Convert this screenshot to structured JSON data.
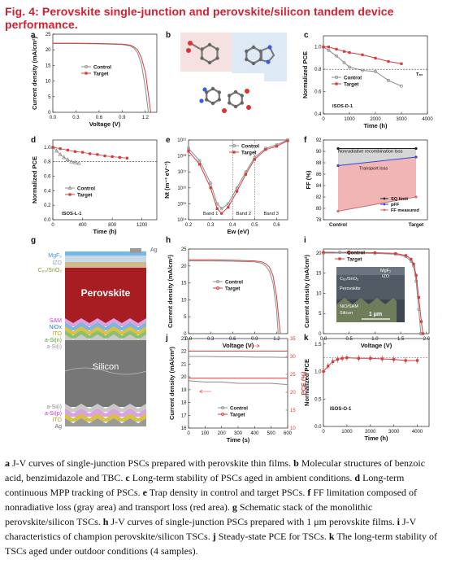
{
  "figure_title": "Fig. 4: Perovskite single-junction and perovskite/silicon tandem device performance.",
  "colors": {
    "control": "#8c8c8c",
    "target": "#d43c3c",
    "title": "#d2202f"
  },
  "panels": {
    "a": {
      "letter": "a",
      "xlabel": "Voltage (V)",
      "ylabel": "Current density (mA/cm²)",
      "xticks": [
        "0.0",
        "0.3",
        "0.6",
        "0.9",
        "1.2"
      ],
      "yticks": [
        "0",
        "5",
        "10",
        "15",
        "20",
        "25"
      ],
      "legend": [
        "Control",
        "Target"
      ]
    },
    "b": {
      "letter": "b"
    },
    "c": {
      "letter": "c",
      "xlabel": "Time (h)",
      "ylabel": "Normalized PCE",
      "xticks": [
        "0",
        "1000",
        "2000",
        "3000",
        "4000"
      ],
      "yticks": [
        "0.4",
        "0.6",
        "0.8",
        "1.0"
      ],
      "legend": [
        "Control",
        "Target"
      ],
      "annotation": "ISOS-D-1",
      "t80": "T₈₀"
    },
    "d": {
      "letter": "d",
      "xlabel": "Time (h)",
      "ylabel": "Normalized PCE",
      "xticks": [
        "0",
        "400",
        "800",
        "1200"
      ],
      "yticks": [
        "0.0",
        "0.2",
        "0.4",
        "0.6",
        "0.8",
        "1.0"
      ],
      "legend": [
        "Control",
        "Target"
      ],
      "annotation": "ISOS-L-1"
    },
    "e": {
      "letter": "e",
      "xlabel": "Ew (eV)",
      "ylabel": "Nt (m⁻³ eV⁻¹)",
      "xticks": [
        "0.2",
        "0.3",
        "0.4",
        "0.5",
        "0.6"
      ],
      "yticks": [
        "10¹⁴",
        "10¹⁵",
        "10¹⁶",
        "10¹⁷",
        "10¹⁸",
        "10¹⁹"
      ],
      "legend": [
        "Control",
        "Target"
      ],
      "bands": [
        "Band 1",
        "Band 2",
        "Band 3"
      ]
    },
    "f": {
      "letter": "f",
      "ylabel": "FF (%)",
      "yticks": [
        "78",
        "80",
        "82",
        "84",
        "86",
        "88",
        "90",
        "92"
      ],
      "xticks": [
        "Control",
        "Target"
      ],
      "labels": [
        "Nonradiative recombination loss",
        "Transport loss"
      ],
      "legend": [
        "SQ limit",
        "pFF",
        "FF measured"
      ]
    },
    "g": {
      "letter": "g",
      "layers_top": [
        "MgF₂",
        "IZO",
        "C₆₀/SnO₂"
      ],
      "ag": "Ag",
      "perovskite": "Perovskite",
      "layers_mid": [
        "SAM",
        "NiOx",
        "ITO",
        "a-Si(n)",
        "a-Si(i)"
      ],
      "silicon": "Silicon",
      "layers_bot": [
        "a-Si(i)",
        "a-Si(p)",
        "ITO",
        "Ag"
      ]
    },
    "h": {
      "letter": "h",
      "xlabel": "Voltage (V)",
      "ylabel": "Current density (mA/cm²)",
      "xticks": [
        "0.0",
        "0.3",
        "0.6",
        "0.9",
        "1.2"
      ],
      "yticks": [
        "0",
        "5",
        "10",
        "15",
        "20",
        "25"
      ],
      "legend": [
        "Control",
        "Target"
      ]
    },
    "i": {
      "letter": "i",
      "xlabel": "Voltage (V)",
      "ylabel": "Current density (mA/cm²)",
      "xticks": [
        "0.0",
        "0.5",
        "1.0",
        "1.5",
        "2.0"
      ],
      "yticks": [
        "0",
        "5",
        "10",
        "15",
        "20"
      ],
      "legend": [
        "Control",
        "Target"
      ],
      "sem_labels": [
        "MgF₂",
        "IZO",
        "C₆₀/SnO₂",
        "Perovskite",
        "NiO/SAM",
        "Silicon"
      ],
      "scale": "1 μm"
    },
    "j": {
      "letter": "j",
      "xlabel": "Time (s)",
      "ylabel": "Current density (mA/cm²)",
      "ylabel2": "PCE (%)",
      "xticks": [
        "0",
        "100",
        "200",
        "300",
        "400",
        "500",
        "600"
      ],
      "yticks": [
        "16",
        "17",
        "18",
        "19",
        "20",
        "21",
        "22",
        "23"
      ],
      "yticks2": [
        "10",
        "15",
        "20",
        "25",
        "30",
        "35"
      ],
      "legend": [
        "Control",
        "Target"
      ]
    },
    "k": {
      "letter": "k",
      "xlabel": "Time (h)",
      "ylabel": "Normalized PCE",
      "xticks": [
        "0",
        "1000",
        "2000",
        "3000",
        "4000"
      ],
      "yticks": [
        "0.0",
        "0.5",
        "1.0",
        "1.5"
      ],
      "annotation": "ISOS-O-1"
    }
  },
  "caption": [
    {
      "b": "a",
      "t": " J-V curves of single-junction PSCs prepared with perovskite thin films. "
    },
    {
      "b": "b",
      "t": " Molecular structures of benzoic acid, benzimidazole and TBC. "
    },
    {
      "b": "c",
      "t": " Long-term stability of PSCs aged in ambient conditions. "
    },
    {
      "b": "d",
      "t": " Long-term continuous MPP tracking of PSCs. "
    },
    {
      "b": "e",
      "t": " Trap density in control and target PSCs. "
    },
    {
      "b": "f",
      "t": " FF limitation composed of nonradiative loss (gray area) and transport loss (red area). "
    },
    {
      "b": "g",
      "t": " Schematic stack of the monolithic perovskite/silicon TSCs. "
    },
    {
      "b": "h",
      "t": " J-V curves of single-junction PSCs prepared with 1 μm perovskite films. "
    },
    {
      "b": "i",
      "t": " J-V characteristics of champion perovskite/silicon TSCs. "
    },
    {
      "b": "j",
      "t": " Steady-state PCE for TSCs. "
    },
    {
      "b": "k",
      "t": " The long-term stability of TSCs aged under outdoor conditions (4 samples)."
    }
  ],
  "chart_data": [
    {
      "panel": "a",
      "type": "line",
      "xlabel": "Voltage (V)",
      "ylabel": "Current density (mA/cm²)",
      "xlim": [
        0,
        1.35
      ],
      "ylim": [
        0,
        25
      ],
      "series": [
        {
          "name": "Control",
          "x": [
            0,
            0.3,
            0.6,
            0.9,
            1.0,
            1.05,
            1.1,
            1.15,
            1.2,
            1.24
          ],
          "y": [
            22,
            22,
            21.9,
            21.7,
            21.3,
            20.6,
            19,
            15.5,
            8,
            0
          ]
        },
        {
          "name": "Target",
          "x": [
            0,
            0.3,
            0.6,
            0.9,
            1.0,
            1.05,
            1.1,
            1.15,
            1.2,
            1.25,
            1.27
          ],
          "y": [
            22.1,
            22.1,
            22,
            21.8,
            21.5,
            21,
            20,
            17.5,
            13,
            4,
            0
          ]
        }
      ]
    },
    {
      "panel": "c",
      "type": "line",
      "xlabel": "Time (h)",
      "ylabel": "Normalized PCE",
      "xlim": [
        0,
        4000
      ],
      "ylim": [
        0.4,
        1.1
      ],
      "series": [
        {
          "name": "Control",
          "x": [
            0,
            200,
            500,
            800,
            1000,
            1500,
            2000,
            2500,
            3000
          ],
          "y": [
            1,
            0.97,
            0.92,
            0.86,
            0.82,
            0.79,
            0.78,
            0.7,
            0.65
          ]
        },
        {
          "name": "Target",
          "x": [
            0,
            200,
            500,
            800,
            1000,
            1500,
            2000,
            2500,
            3000
          ],
          "y": [
            1,
            1.0,
            0.98,
            0.96,
            0.95,
            0.93,
            0.9,
            0.87,
            0.85
          ]
        }
      ]
    },
    {
      "panel": "d",
      "type": "scatter",
      "xlabel": "Time (h)",
      "ylabel": "Normalized PCE",
      "xlim": [
        0,
        1400
      ],
      "ylim": [
        0,
        1.1
      ],
      "series": [
        {
          "name": "Control",
          "x": [
            0,
            50,
            100,
            150,
            200,
            250,
            300,
            350
          ],
          "y": [
            1,
            0.95,
            0.9,
            0.86,
            0.83,
            0.8,
            0.79,
            0.78
          ]
        },
        {
          "name": "Target",
          "x": [
            0,
            100,
            200,
            300,
            400,
            500,
            600,
            700,
            800,
            900,
            1000
          ],
          "y": [
            1,
            0.98,
            0.96,
            0.94,
            0.93,
            0.91,
            0.9,
            0.88,
            0.87,
            0.86,
            0.85
          ]
        }
      ]
    },
    {
      "panel": "e",
      "type": "line",
      "xlabel": "Ew (eV)",
      "ylabel": "Nt (m⁻³ eV⁻¹)",
      "yscale": "log",
      "xlim": [
        0.2,
        0.65
      ],
      "ylim": [
        100000000000000.0,
        1e+19
      ],
      "series": [
        {
          "name": "Control",
          "x": [
            0.2,
            0.25,
            0.3,
            0.33,
            0.35,
            0.38,
            0.42,
            0.46,
            0.5,
            0.55,
            0.6,
            0.65
          ],
          "y": [
            3e+18,
            5e+17,
            2e+16,
            1000000000000000.0,
            500000000000000.0,
            1000000000000000.0,
            1e+16,
            1e+17,
            8e+17,
            3e+18,
            5e+18,
            1e+19
          ]
        },
        {
          "name": "Target",
          "x": [
            0.2,
            0.25,
            0.3,
            0.33,
            0.35,
            0.38,
            0.42,
            0.46,
            0.5,
            0.55,
            0.6,
            0.65
          ],
          "y": [
            2e+18,
            3e+17,
            1e+16,
            500000000000000.0,
            250000000000000.0,
            600000000000000.0,
            6000000000000000.0,
            7e+16,
            6e+17,
            2.5e+18,
            4e+18,
            9e+18
          ]
        }
      ]
    },
    {
      "panel": "f",
      "type": "line",
      "ylabel": "FF (%)",
      "categories": [
        "Control",
        "Target"
      ],
      "ylim": [
        78,
        92
      ],
      "series": [
        {
          "name": "SQ limit",
          "values": [
            90.5,
            90.5
          ]
        },
        {
          "name": "pFF",
          "values": [
            87.5,
            89.0
          ]
        },
        {
          "name": "FF measured",
          "values": [
            79.5,
            82.0
          ]
        }
      ]
    },
    {
      "panel": "h",
      "type": "line",
      "xlabel": "Voltage (V)",
      "ylabel": "Current density (mA/cm²)",
      "xlim": [
        0,
        1.35
      ],
      "ylim": [
        0,
        25
      ],
      "series": [
        {
          "name": "Control",
          "x": [
            0,
            0.3,
            0.6,
            0.9,
            1.0,
            1.05,
            1.1,
            1.15,
            1.2,
            1.22
          ],
          "y": [
            21.5,
            21.5,
            21.4,
            21.2,
            20.8,
            20,
            18.5,
            15,
            7,
            0
          ]
        },
        {
          "name": "Target",
          "x": [
            0,
            0.3,
            0.6,
            0.9,
            1.0,
            1.05,
            1.1,
            1.15,
            1.2,
            1.23,
            1.25
          ],
          "y": [
            21.8,
            21.8,
            21.7,
            21.5,
            21.2,
            20.7,
            19.7,
            17.2,
            11,
            4,
            0
          ]
        }
      ]
    },
    {
      "panel": "i",
      "type": "line",
      "xlabel": "Voltage (V)",
      "ylabel": "Current density (mA/cm²)",
      "xlim": [
        0,
        2.05
      ],
      "ylim": [
        0,
        21
      ],
      "series": [
        {
          "name": "Control",
          "x": [
            0,
            0.5,
            1.0,
            1.4,
            1.6,
            1.7,
            1.75,
            1.8,
            1.85,
            1.89
          ],
          "y": [
            20,
            20,
            19.9,
            19.7,
            19.1,
            18,
            16.8,
            13,
            6,
            0
          ]
        },
        {
          "name": "Target",
          "x": [
            0,
            0.5,
            1.0,
            1.4,
            1.6,
            1.7,
            1.75,
            1.8,
            1.85,
            1.9,
            1.93
          ],
          "y": [
            20.2,
            20.2,
            20.1,
            19.9,
            19.4,
            18.5,
            17.3,
            14.5,
            9,
            3,
            0
          ]
        }
      ]
    },
    {
      "panel": "j",
      "type": "line",
      "xlabel": "Time (s)",
      "ylabel": "Current density (mA/cm²)",
      "ylabel2": "PCE (%)",
      "xlim": [
        0,
        600
      ],
      "ylim": [
        16,
        23
      ],
      "ylim2": [
        10,
        35
      ],
      "series": [
        {
          "name": "Control current density",
          "x": [
            0,
            100,
            200,
            300,
            400,
            500,
            600
          ],
          "y": [
            19.7,
            19.6,
            19.6,
            19.5,
            19.5,
            19.5,
            19.4
          ]
        },
        {
          "name": "Target current density",
          "x": [
            0,
            100,
            200,
            300,
            400,
            500,
            600
          ],
          "y": [
            19.9,
            19.9,
            19.9,
            19.9,
            19.9,
            19.9,
            19.9
          ]
        },
        {
          "name": "Control PCE",
          "x": [
            0,
            100,
            200,
            300,
            400,
            500,
            600
          ],
          "y": [
            30,
            30,
            29.9,
            29.9,
            29.8,
            29.8,
            29.7
          ]
        },
        {
          "name": "Target PCE",
          "x": [
            0,
            100,
            200,
            300,
            400,
            500,
            600
          ],
          "y": [
            31.5,
            31.5,
            31.5,
            31.5,
            31.5,
            31.5,
            31.5
          ]
        }
      ]
    },
    {
      "panel": "k",
      "type": "scatter",
      "xlabel": "Time (h)",
      "ylabel": "Normalized PCE",
      "xlim": [
        0,
        4500
      ],
      "ylim": [
        0,
        1.6
      ],
      "series": [
        {
          "name": "",
          "x": [
            0,
            200,
            400,
            600,
            800,
            1000,
            1500,
            2000,
            2500,
            3000,
            3500,
            4000
          ],
          "y": [
            1.0,
            1.1,
            1.18,
            1.22,
            1.24,
            1.25,
            1.24,
            1.24,
            1.23,
            1.22,
            1.2,
            1.2
          ]
        }
      ]
    }
  ]
}
